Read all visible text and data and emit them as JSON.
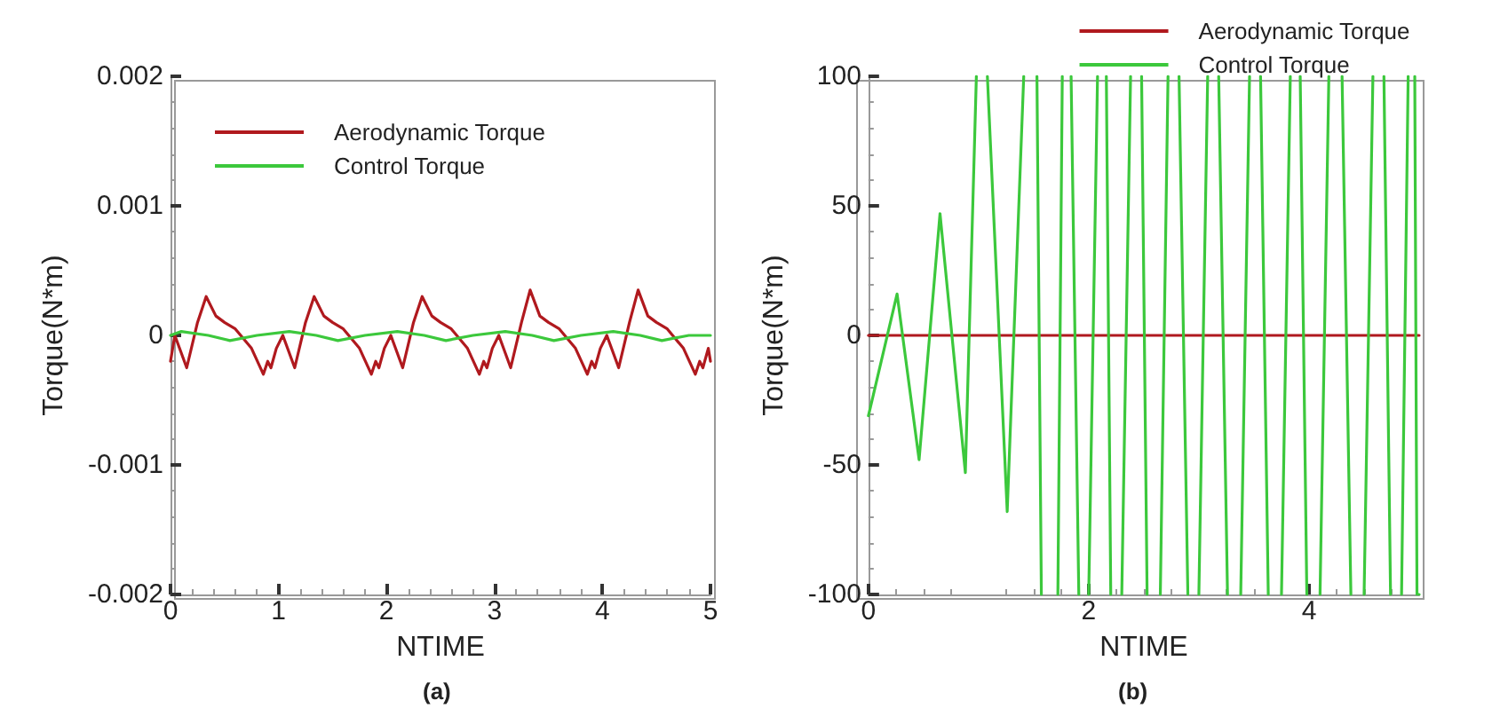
{
  "chart_data": [
    {
      "type": "line",
      "xlabel": "NTIME",
      "ylabel": "Torque(N*m)",
      "annotations": [
        "(a)"
      ],
      "xlim": [
        0,
        5
      ],
      "xticks": [
        0,
        1,
        2,
        3,
        4,
        5
      ],
      "ylim": [
        -0.002,
        0.002
      ],
      "yticks": [
        -0.002,
        -0.001,
        0,
        0.001,
        0.002
      ],
      "legend": "top left",
      "grid": false,
      "marker": "none",
      "line_style": "solid",
      "series": [
        {
          "name": "Aerodynamic Torque",
          "color": "#b0191e",
          "x": [
            0,
            0.04,
            0.15,
            0.25,
            0.33,
            0.42,
            0.5,
            0.6,
            0.75,
            0.86,
            0.9,
            0.93,
            0.98,
            1.04,
            1.15,
            1.25,
            1.33,
            1.42,
            1.5,
            1.6,
            1.75,
            1.86,
            1.9,
            1.93,
            1.98,
            2.04,
            2.15,
            2.25,
            2.33,
            2.42,
            2.5,
            2.6,
            2.75,
            2.86,
            2.9,
            2.93,
            2.98,
            3.04,
            3.15,
            3.25,
            3.33,
            3.42,
            3.5,
            3.6,
            3.75,
            3.86,
            3.9,
            3.93,
            3.98,
            4.04,
            4.15,
            4.25,
            4.33,
            4.42,
            4.5,
            4.6,
            4.75,
            4.86,
            4.9,
            4.93,
            4.98,
            5
          ],
          "values": [
            -0.0002,
            0,
            -0.00025,
            0.0001,
            0.0003,
            0.00015,
            0.0001,
            5e-05,
            -0.0001,
            -0.0003,
            -0.0002,
            -0.00025,
            -0.0001,
            0,
            -0.00025,
            0.0001,
            0.0003,
            0.00015,
            0.0001,
            5e-05,
            -0.0001,
            -0.0003,
            -0.0002,
            -0.00025,
            -0.0001,
            0,
            -0.00025,
            0.0001,
            0.0003,
            0.00015,
            0.0001,
            5e-05,
            -0.0001,
            -0.0003,
            -0.0002,
            -0.00025,
            -0.0001,
            0,
            -0.00025,
            0.0001,
            0.00035,
            0.00015,
            0.0001,
            5e-05,
            -0.0001,
            -0.0003,
            -0.0002,
            -0.00025,
            -0.0001,
            0,
            -0.00025,
            0.0001,
            0.00035,
            0.00015,
            0.0001,
            5e-05,
            -0.0001,
            -0.0003,
            -0.0002,
            -0.00025,
            -0.0001,
            -0.0002
          ]
        },
        {
          "name": "Control Torque",
          "color": "#3cc83c",
          "x": [
            0,
            0.1,
            0.35,
            0.55,
            0.8,
            1.1,
            1.35,
            1.55,
            1.8,
            2.1,
            2.35,
            2.55,
            2.8,
            3.1,
            3.35,
            3.55,
            3.8,
            4.1,
            4.35,
            4.55,
            4.8,
            5
          ],
          "values": [
            0,
            3e-05,
            0,
            -4e-05,
            0,
            3e-05,
            0,
            -4e-05,
            0,
            3e-05,
            0,
            -4e-05,
            0,
            3e-05,
            0,
            -4e-05,
            0,
            3e-05,
            0,
            -4e-05,
            0,
            0
          ]
        }
      ]
    },
    {
      "type": "line",
      "xlabel": "NTIME",
      "ylabel": "Torque(N*m)",
      "annotations": [
        "(b)"
      ],
      "xlim": [
        0,
        5
      ],
      "xticks": [
        0,
        2,
        4
      ],
      "ylim": [
        -100,
        100
      ],
      "yticks": [
        -100,
        -50,
        0,
        50,
        100
      ],
      "legend": "top right",
      "grid": false,
      "marker": "none",
      "line_style": "solid",
      "series": [
        {
          "name": "Aerodynamic Torque",
          "color": "#b0191e",
          "x": [
            0,
            5
          ],
          "values": [
            0,
            0
          ]
        },
        {
          "name": "Control Torque",
          "color": "#3cc83c",
          "x": [
            0,
            0.26,
            0.46,
            0.65,
            0.88,
            0.98,
            1.0,
            1.08,
            1.26,
            1.41,
            1.45,
            1.53,
            1.57,
            1.6,
            1.72,
            1.76,
            1.8,
            1.84,
            1.91,
            1.96,
            2.0,
            2.08,
            2.12,
            2.16,
            2.2,
            2.24,
            2.3,
            2.38,
            2.42,
            2.48,
            2.53,
            2.57,
            2.65,
            2.72,
            2.76,
            2.82,
            2.9,
            2.94,
            3.0,
            3.08,
            3.12,
            3.18,
            3.26,
            3.3,
            3.38,
            3.46,
            3.5,
            3.56,
            3.63,
            3.67,
            3.75,
            3.83,
            3.87,
            3.92,
            3.98,
            4.02,
            4.1,
            4.18,
            4.22,
            4.3,
            4.38,
            4.42,
            4.5,
            4.58,
            4.62,
            4.68,
            4.74,
            4.78,
            4.84,
            4.9,
            4.94,
            4.96,
            4.98,
            5
          ],
          "values": [
            -31,
            16,
            -48,
            47,
            -53,
            100,
            null,
            100,
            -68,
            100,
            null,
            100,
            -100,
            null,
            -100,
            100,
            null,
            100,
            -100,
            null,
            -100,
            100,
            null,
            100,
            -100,
            null,
            -100,
            100,
            null,
            100,
            -100,
            null,
            -100,
            100,
            null,
            100,
            -100,
            null,
            -100,
            100,
            null,
            100,
            -100,
            null,
            -100,
            100,
            null,
            100,
            -100,
            null,
            -100,
            100,
            null,
            100,
            -100,
            null,
            -100,
            100,
            null,
            100,
            -100,
            null,
            -100,
            100,
            null,
            100,
            -100,
            null,
            -100,
            100,
            null,
            100,
            -100,
            -100
          ]
        }
      ]
    }
  ]
}
